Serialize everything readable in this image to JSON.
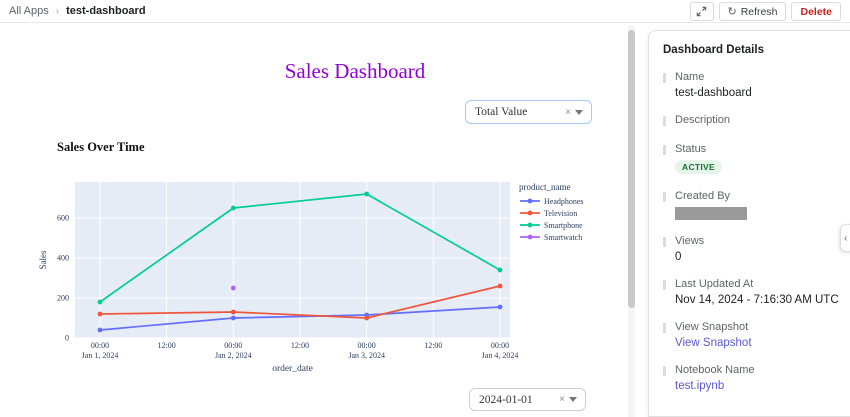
{
  "breadcrumb": {
    "items": [
      "All Apps",
      "test-dashboard"
    ],
    "separator": "›"
  },
  "toolbar": {
    "refresh_label": "Refresh",
    "delete_label": "Delete"
  },
  "dashboard": {
    "title": "Sales Dashboard",
    "title_color": "#9400d3",
    "filter_top": {
      "value": "Total Value"
    },
    "filter_bottom": {
      "value": "2024-01-01"
    }
  },
  "chart_data": {
    "type": "line",
    "title": "Sales Over Time",
    "xlabel": "order_date",
    "ylabel": "Sales",
    "plot_bg": "#E5ECF6",
    "grid_color": "#ffffff",
    "tick_color": "#2a3f5f",
    "x_tick_hours": [
      0,
      12,
      24,
      36,
      48,
      60,
      72
    ],
    "x_tick_labels": [
      "00:00",
      "12:00",
      "00:00",
      "12:00",
      "00:00",
      "12:00",
      "00:00"
    ],
    "x_date_ticks": [
      {
        "hour": 0,
        "label": "Jan 1, 2024"
      },
      {
        "hour": 24,
        "label": "Jan 2, 2024"
      },
      {
        "hour": 48,
        "label": "Jan 3, 2024"
      },
      {
        "hour": 72,
        "label": "Jan 4, 2024"
      }
    ],
    "yticks": [
      0,
      200,
      400,
      600
    ],
    "ylim": [
      0,
      780
    ],
    "xlim_hours": [
      -4.5,
      73.8
    ],
    "legend_title": "product_name",
    "legend_position": "right",
    "grid": true,
    "series": [
      {
        "name": "Headphones",
        "color": "#636EFA",
        "x_hours": [
          0,
          24,
          48,
          72
        ],
        "x_labels": [
          "Jan 1 00:00",
          "Jan 2 00:00",
          "Jan 3 00:00",
          "Jan 4 00:00"
        ],
        "values": [
          40,
          100,
          115,
          155
        ]
      },
      {
        "name": "Television",
        "color": "#EF553B",
        "x_hours": [
          0,
          24,
          48,
          72
        ],
        "x_labels": [
          "Jan 1 00:00",
          "Jan 2 00:00",
          "Jan 3 00:00",
          "Jan 4 00:00"
        ],
        "values": [
          120,
          130,
          100,
          260
        ]
      },
      {
        "name": "Smartphone",
        "color": "#00CC96",
        "x_hours": [
          0,
          24,
          48,
          72
        ],
        "x_labels": [
          "Jan 1 00:00",
          "Jan 2 00:00",
          "Jan 3 00:00",
          "Jan 4 00:00"
        ],
        "values": [
          180,
          650,
          720,
          340
        ]
      },
      {
        "name": "Smartwatch",
        "color": "#AB63FA",
        "x_hours": [
          24
        ],
        "x_labels": [
          "Jan 2 00:00"
        ],
        "values": [
          250
        ]
      }
    ]
  },
  "details_panel": {
    "title": "Dashboard Details",
    "status_text_color": "#137333",
    "status_bg_color": "#e6f4ea",
    "link_color": "#5b57d1",
    "fields": [
      {
        "label": "Name",
        "value": "test-dashboard",
        "type": "text"
      },
      {
        "label": "Description",
        "value": "",
        "type": "text"
      },
      {
        "label": "Status",
        "value": "ACTIVE",
        "type": "badge"
      },
      {
        "label": "Created By",
        "value": "",
        "type": "redacted"
      },
      {
        "label": "Views",
        "value": "0",
        "type": "text"
      },
      {
        "label": "Last Updated At",
        "value": "Nov 14, 2024 - 7:16:30 AM UTC",
        "type": "text"
      },
      {
        "label": "View Snapshot",
        "value": "View Snapshot",
        "type": "link"
      },
      {
        "label": "Notebook Name",
        "value": "test.ipynb",
        "type": "link"
      }
    ]
  },
  "icons": {
    "expand": "expand-diagonal-arrows",
    "refresh": "↻",
    "clear": "×",
    "collapse_chevron": "‹"
  }
}
